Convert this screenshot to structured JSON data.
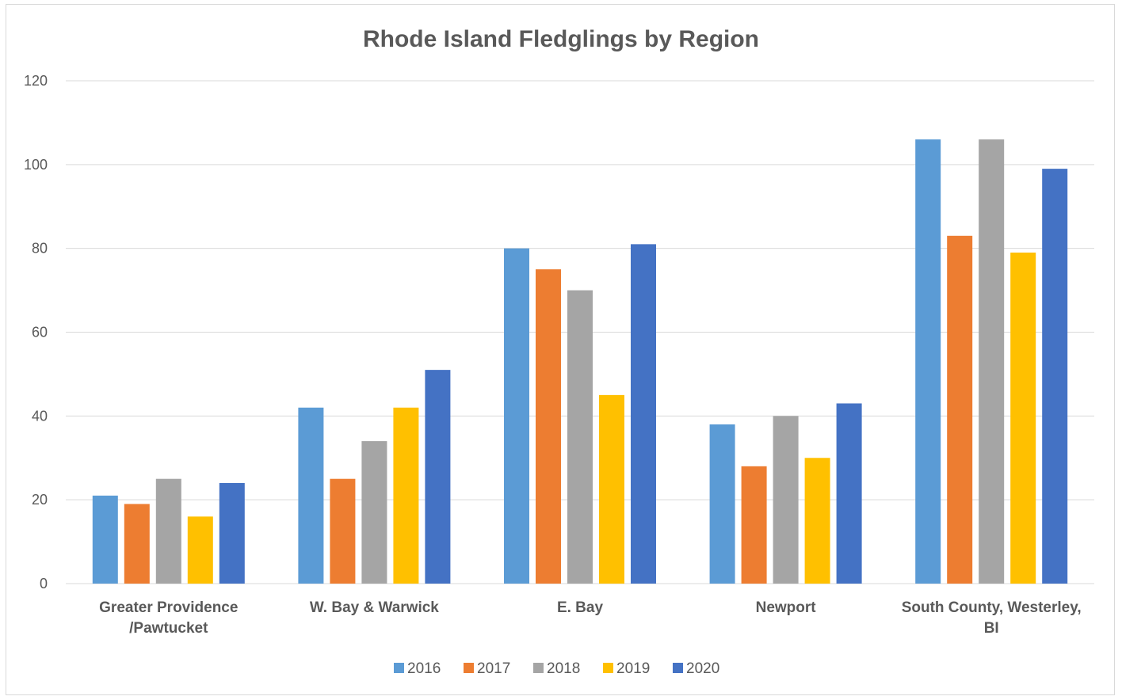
{
  "chart_data": {
    "type": "bar",
    "title": "Rhode Island Fledglings by Region",
    "xlabel": "",
    "ylabel": "",
    "ylim": [
      0,
      120
    ],
    "yticks": [
      0,
      20,
      40,
      60,
      80,
      100,
      120
    ],
    "grid": true,
    "legend": "bottom",
    "categories": [
      [
        "Greater Providence",
        "/Pawtucket"
      ],
      [
        "W. Bay & Warwick"
      ],
      [
        "E. Bay"
      ],
      [
        "Newport"
      ],
      [
        "South County, Westerley,",
        "BI"
      ]
    ],
    "series": [
      {
        "name": "2016",
        "color": "#5b9bd5",
        "values": [
          21,
          42,
          80,
          38,
          106
        ]
      },
      {
        "name": "2017",
        "color": "#ed7d31",
        "values": [
          19,
          25,
          75,
          28,
          83
        ]
      },
      {
        "name": "2018",
        "color": "#a5a5a5",
        "values": [
          25,
          34,
          70,
          40,
          106
        ]
      },
      {
        "name": "2019",
        "color": "#ffc000",
        "values": [
          16,
          42,
          45,
          30,
          79
        ]
      },
      {
        "name": "2020",
        "color": "#4472c4",
        "values": [
          24,
          51,
          81,
          43,
          99
        ]
      }
    ]
  }
}
